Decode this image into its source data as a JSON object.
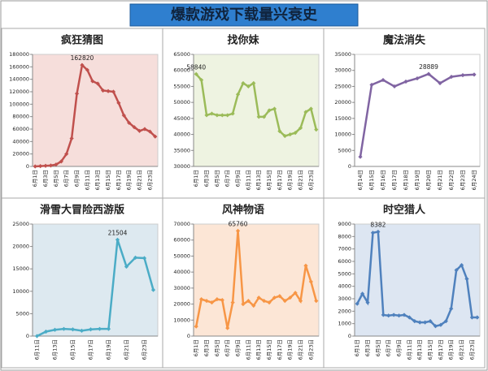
{
  "title": "爆款游戏下载量兴衰史",
  "chart_data": [
    {
      "type": "line",
      "title": "疯狂猜图",
      "color": "#c0504d",
      "background": "#f6dedb",
      "peak_label": true,
      "categories": [
        "6月1日",
        null,
        "6月3日",
        null,
        "6月5日",
        null,
        "6月7日",
        null,
        "6月9日",
        null,
        "6月11日",
        null,
        "6月13日",
        null,
        "6月15日",
        null,
        "6月17日",
        null,
        "6月19日",
        null,
        "6月21日",
        null,
        "6月23日",
        null
      ],
      "values": [
        0,
        500,
        1000,
        1500,
        3000,
        8000,
        20000,
        45000,
        117000,
        162820,
        155000,
        137000,
        133000,
        122000,
        121000,
        120000,
        102000,
        82000,
        70000,
        63000,
        57000,
        60000,
        56000,
        48000
      ],
      "ylim": [
        0,
        180000
      ],
      "yticks": [
        0,
        20000,
        40000,
        60000,
        80000,
        100000,
        120000,
        140000,
        160000,
        180000
      ]
    },
    {
      "type": "line",
      "title": "找你妹",
      "color": "#9bbb59",
      "background": "#eef3e1",
      "peak_label": true,
      "categories": [
        "6月1日",
        null,
        "6月3日",
        null,
        "6月5日",
        null,
        "6月7日",
        null,
        "6月9日",
        null,
        "6月11日",
        null,
        "6月13日",
        null,
        "6月15日",
        null,
        "6月17日",
        null,
        "6月19日",
        null,
        "6月21日",
        null,
        "6月23日",
        null
      ],
      "values": [
        58840,
        57000,
        46000,
        46500,
        46000,
        46000,
        46000,
        46500,
        52500,
        56000,
        55000,
        56000,
        45500,
        45500,
        47500,
        48000,
        41000,
        39500,
        40000,
        40500,
        42000,
        47000,
        48000,
        41500
      ],
      "ylim": [
        30000,
        65000
      ],
      "yticks": [
        30000,
        35000,
        40000,
        45000,
        50000,
        55000,
        60000,
        65000
      ]
    },
    {
      "type": "line",
      "title": "魔法消失",
      "color": "#8064a2",
      "background": "#ffffff",
      "peak_label": true,
      "categories": [
        "6月14日",
        "6月15日",
        "6月16日",
        "6月17日",
        "6月18日",
        "6月19日",
        "6月20日",
        "6月21日",
        "6月22日",
        "6月23日",
        "6月24日"
      ],
      "values": [
        3000,
        25500,
        27000,
        25000,
        26500,
        27500,
        28889,
        26000,
        28000,
        28500,
        28700
      ],
      "ylim": [
        0,
        35000
      ],
      "yticks": [
        0,
        5000,
        10000,
        15000,
        20000,
        25000,
        30000,
        35000
      ]
    },
    {
      "type": "line",
      "title": "滑雪大冒险西游版",
      "color": "#4bacc6",
      "background": "#dde9f0",
      "peak_label": true,
      "categories": [
        "6月11日",
        null,
        "6月13日",
        null,
        "6月15日",
        null,
        "6月17日",
        null,
        "6月19日",
        null,
        "6月21日",
        null,
        "6月23日",
        null
      ],
      "values": [
        0,
        1000,
        1400,
        1600,
        1500,
        1200,
        1500,
        1600,
        1600,
        21504,
        15500,
        17500,
        17400,
        10300
      ],
      "ylim": [
        0,
        25000
      ],
      "yticks": [
        0,
        5000,
        10000,
        15000,
        20000,
        25000
      ]
    },
    {
      "type": "line",
      "title": "风神物语",
      "color": "#f79646",
      "background": "#fce6d6",
      "peak_label": true,
      "categories": [
        "6月1日",
        null,
        "6月3日",
        null,
        "6月5日",
        null,
        "6月7日",
        null,
        "6月9日",
        null,
        "6月11日",
        null,
        "6月13日",
        null,
        "6月15日",
        null,
        "6月17日",
        null,
        "6月19日",
        null,
        "6月21日",
        null,
        "6月23日",
        null
      ],
      "values": [
        6000,
        23000,
        22000,
        21000,
        23000,
        22500,
        5000,
        21000,
        65760,
        20000,
        22000,
        19000,
        24000,
        22000,
        21000,
        24000,
        25000,
        22000,
        24000,
        27000,
        22000,
        44000,
        34000,
        22000
      ],
      "ylim": [
        0,
        70000
      ],
      "yticks": [
        0,
        10000,
        20000,
        30000,
        40000,
        50000,
        60000,
        70000
      ]
    },
    {
      "type": "line",
      "title": "时空猎人",
      "color": "#4f81bd",
      "background": "#dde6f2",
      "peak_label": true,
      "categories": [
        "6月1日",
        null,
        "6月3日",
        null,
        "6月5日",
        null,
        "6月7日",
        null,
        "6月9日",
        null,
        "6月11日",
        null,
        "6月13日",
        null,
        "6月15日",
        null,
        "6月17日",
        null,
        "6月19日",
        null,
        "6月21日",
        null,
        "6月23日",
        null
      ],
      "values": [
        2600,
        3400,
        2700,
        8300,
        8382,
        1700,
        1650,
        1700,
        1650,
        1700,
        1500,
        1200,
        1100,
        1100,
        1200,
        800,
        900,
        1200,
        2200,
        5300,
        5700,
        4600,
        1500,
        1500
      ],
      "ylim": [
        0,
        9000
      ],
      "yticks": [
        0,
        1000,
        2000,
        3000,
        4000,
        5000,
        6000,
        7000,
        8000,
        9000
      ]
    }
  ]
}
